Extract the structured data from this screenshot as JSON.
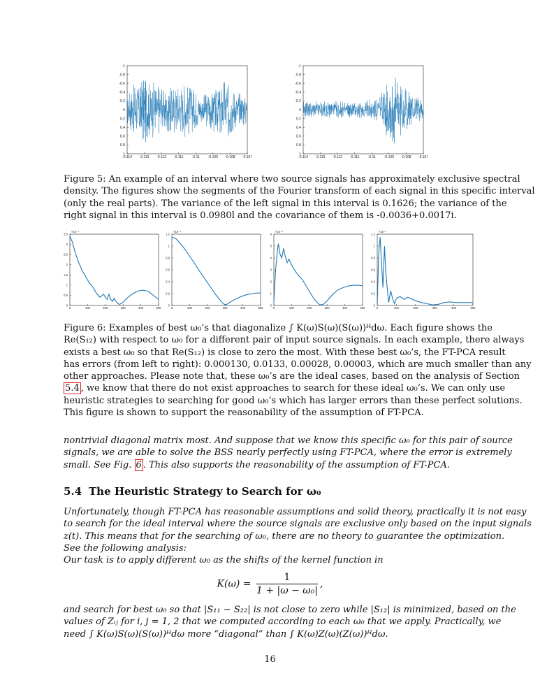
{
  "chart_data": [
    {
      "type": "line",
      "title": "",
      "xlim": [
        -0.114,
        -0.107
      ],
      "ylim": [
        -1,
        1
      ],
      "xticks": [
        "-0.114",
        "-0.113",
        "-0.112",
        "-0.111",
        "-0.11",
        "-0.109",
        "-0.108",
        "-0.107"
      ],
      "yticks": [
        "1",
        "0.8",
        "0.6",
        "0.4",
        "0.2",
        "0",
        "-0.2",
        "-0.4",
        "-0.6",
        "-0.8",
        "-1"
      ],
      "x_exp": "",
      "color": "#1f77b4",
      "envelope": [
        [
          0,
          0.35
        ],
        [
          0.12,
          0.85
        ],
        [
          0.3,
          0.5
        ],
        [
          0.5,
          0.65
        ],
        [
          0.62,
          0.3
        ],
        [
          0.7,
          0.5
        ],
        [
          0.83,
          0.75
        ],
        [
          0.9,
          0.45
        ],
        [
          1,
          0.35
        ]
      ]
    },
    {
      "type": "line",
      "title": "",
      "xlim": [
        -0.114,
        -0.107
      ],
      "ylim": [
        -1,
        1
      ],
      "xticks": [
        "-0.114",
        "-0.113",
        "-0.112",
        "-0.111",
        "-0.11",
        "-0.109",
        "-0.108",
        "-0.107"
      ],
      "yticks": [
        "1",
        "0.8",
        "0.6",
        "0.4",
        "0.2",
        "0",
        "-0.2",
        "-0.4",
        "-0.6",
        "-0.8",
        "-1"
      ],
      "x_exp": "",
      "color": "#1f77b4",
      "envelope": [
        [
          0,
          0.2
        ],
        [
          0.3,
          0.2
        ],
        [
          0.5,
          0.2
        ],
        [
          0.62,
          0.3
        ],
        [
          0.74,
          0.9
        ],
        [
          0.82,
          0.6
        ],
        [
          0.9,
          0.4
        ],
        [
          1,
          0.3
        ]
      ]
    },
    {
      "type": "line",
      "xlim": [
        0,
        500
      ],
      "ylim": [
        0,
        3.5
      ],
      "y_exp": "×10⁻⁵",
      "xticks": [
        "0",
        "100",
        "200",
        "300",
        "400",
        "500"
      ],
      "yticks": [
        "0",
        "0.5",
        "1",
        "1.5",
        "2",
        "2.5",
        "3",
        "3.5"
      ],
      "color": "#1f77b4",
      "x": [
        0,
        15,
        30,
        50,
        70,
        90,
        110,
        130,
        150,
        170,
        190,
        200,
        210,
        220,
        230,
        240,
        250,
        260,
        270,
        280,
        300,
        320,
        350,
        380,
        410,
        440,
        470,
        500
      ],
      "y": [
        3.4,
        3.1,
        2.6,
        2.1,
        1.7,
        1.4,
        1.1,
        0.9,
        0.6,
        0.4,
        0.55,
        0.4,
        0.3,
        0.55,
        0.3,
        0.2,
        0.35,
        0.2,
        0.1,
        0.05,
        0.15,
        0.35,
        0.55,
        0.7,
        0.75,
        0.7,
        0.5,
        0.3
      ]
    },
    {
      "type": "line",
      "xlim": [
        0,
        500
      ],
      "ylim": [
        0,
        1.2
      ],
      "y_exp": "×10⁻⁵",
      "xticks": [
        "0",
        "100",
        "200",
        "300",
        "400",
        "500"
      ],
      "yticks": [
        "0",
        "0.2",
        "0.4",
        "0.6",
        "0.8",
        "1",
        "1.2"
      ],
      "color": "#1f77b4",
      "x": [
        0,
        20,
        40,
        60,
        80,
        100,
        130,
        160,
        190,
        220,
        250,
        280,
        300,
        310,
        330,
        360,
        390,
        420,
        450,
        480,
        500
      ],
      "y": [
        1.15,
        1.13,
        1.07,
        1.0,
        0.92,
        0.83,
        0.7,
        0.56,
        0.43,
        0.3,
        0.17,
        0.06,
        0.01,
        0.02,
        0.06,
        0.11,
        0.15,
        0.18,
        0.2,
        0.21,
        0.21
      ]
    },
    {
      "type": "line",
      "xlim": [
        0,
        500
      ],
      "ylim": [
        0,
        6
      ],
      "y_exp": "×10⁻⁵",
      "xticks": [
        "0",
        "100",
        "200",
        "300",
        "400",
        "500"
      ],
      "yticks": [
        "0",
        "1",
        "2",
        "3",
        "4",
        "5",
        "6"
      ],
      "color": "#1f77b4",
      "x": [
        0,
        10,
        20,
        25,
        35,
        45,
        55,
        65,
        75,
        85,
        100,
        120,
        140,
        160,
        180,
        200,
        220,
        240,
        260,
        280,
        300,
        330,
        360,
        390,
        420,
        450,
        480,
        500
      ],
      "y": [
        0.3,
        3.0,
        4.6,
        5.2,
        4.3,
        4.0,
        4.8,
        4.1,
        3.6,
        3.9,
        3.4,
        2.9,
        2.5,
        2.2,
        1.7,
        1.2,
        0.7,
        0.3,
        0.05,
        0.1,
        0.4,
        0.9,
        1.3,
        1.5,
        1.65,
        1.7,
        1.7,
        1.65
      ]
    },
    {
      "type": "line",
      "xlim": [
        0,
        500
      ],
      "ylim": [
        0,
        1.2
      ],
      "y_exp": "×10⁻⁵",
      "xticks": [
        "0",
        "100",
        "200",
        "300",
        "400",
        "500"
      ],
      "yticks": [
        "0",
        "0.2",
        "0.4",
        "0.6",
        "0.8",
        "1",
        "1.2"
      ],
      "color": "#1f77b4",
      "x": [
        0,
        8,
        15,
        22,
        30,
        38,
        45,
        52,
        60,
        70,
        80,
        90,
        100,
        120,
        140,
        160,
        180,
        200,
        230,
        260,
        290,
        320,
        350,
        380,
        410,
        440,
        470,
        500
      ],
      "y": [
        0.02,
        0.9,
        1.15,
        0.75,
        0.3,
        1.0,
        0.55,
        0.3,
        0.05,
        0.25,
        0.12,
        0.03,
        0.12,
        0.15,
        0.1,
        0.14,
        0.11,
        0.08,
        0.05,
        0.03,
        0.01,
        0.02,
        0.05,
        0.06,
        0.05,
        0.05,
        0.05,
        0.05
      ]
    }
  ],
  "fig5_caption": [
    "Figure 5:   An example of an interval where two source signals has approximately exclusive spectral",
    "density. The figures show the segments of the Fourier transform of each signal in this specific interval",
    "(only the real parts).  The variance of the left signal in this interval is 0.1626; the variance of the",
    "right signal in this interval is 0.0980l and the covariance of them is -0.0036+0.0017i."
  ],
  "fig6_caption": {
    "line1": "Figure 6: Examples of best ω₀’s that diagonalize ∫ K(ω)S(ω)(S(ω))ᴴdω.  Each figure shows the",
    "line2": "Re(S₁₂) with respect to ω₀ for a different pair of input source signals. In each example, there always",
    "line3": "exists a best ω₀ so that Re(S₁₂) is close to zero the most. With these best ω₀’s, the FT-PCA result",
    "line4": "has errors (from left to right): 0.000130, 0.0133, 0.00028, 0.00003, which are much smaller than any",
    "line5": "other approaches. Please note that, these ω₀’s are the ideal cases, based on the analysis of Section",
    "line6_ref": "5.4",
    "line6_rest": ", we know that there do not exist approaches to search for these ideal ω₀’s. We can only use",
    "line7": "heuristic strategies to searching for good ω₀’s which has larger errors than these perfect solutions.",
    "line8": "This figure is shown to support the reasonability of the assumption of FT-PCA."
  },
  "para1": {
    "line1": "nontrivial diagonal matrix most.  And suppose that we know this specific ω₀ for this pair of source",
    "line2": "signals, we are able to solve the BSS nearly perfectly using FT-PCA, where the error is extremely",
    "line3_a": "small. See Fig. ",
    "line3_ref": "6",
    "line3_b": ". This also supports the reasonability of the assumption of FT-PCA."
  },
  "section": {
    "number": "5.4",
    "title": "The Heuristic Strategy to Search for ω₀"
  },
  "para2": [
    "Unfortunately, though FT-PCA has reasonable assumptions and solid theory, practically it is not easy",
    "to search for the ideal interval where the source signals are exclusive only based on the input signals",
    "z(t).  This means that for the searching of ω₀, there are no theory to guarantee the optimization.",
    "See the following analysis:",
    "Our task is to apply different ω₀ as the shifts of the kernel function in"
  ],
  "equation": {
    "lhs": "K(ω) =",
    "num": "1",
    "den": "1 + |ω − ω₀|",
    "tail": ","
  },
  "para3": [
    "and search for best ω₀ so that |S₁₁ − S₂₂| is not close to zero while |S₁₂| is minimized, based on the",
    "values of Zᵢⱼ for i, j = 1, 2 that we computed according to each ω₀ that we apply.  Practically, we",
    "need ∫ K(ω)S(ω)(S(ω))ᴴdω more “diagonal” than ∫ K(ω)Z(ω)(Z(ω))ᴴdω."
  ],
  "page_number": "16"
}
